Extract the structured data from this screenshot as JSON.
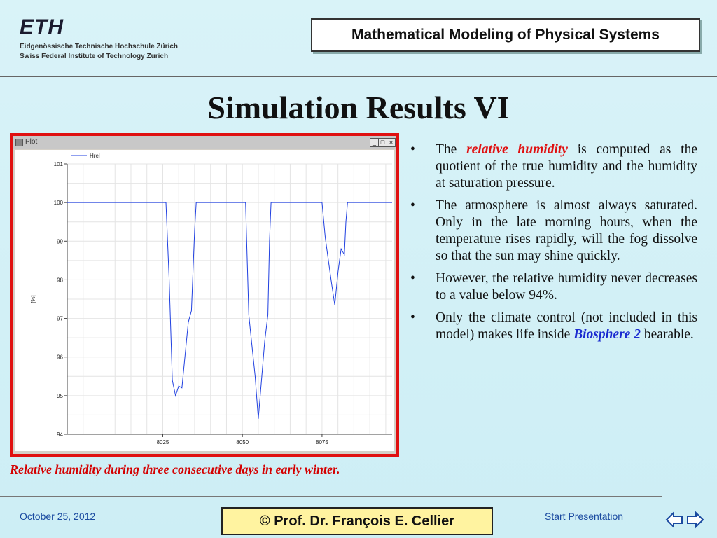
{
  "header": {
    "logo_text": "ETH",
    "logo_line1": "Eidgenössische Technische Hochschule Zürich",
    "logo_line2": "Swiss Federal Institute of Technology Zurich",
    "course_title": "Mathematical Modeling of Physical Systems"
  },
  "slide": {
    "title": "Simulation Results VI"
  },
  "plot_window": {
    "title": "Plot",
    "minimize": "_",
    "maximize": "□",
    "close": "×"
  },
  "chart_data": {
    "type": "line",
    "ylabel": "[%]",
    "series": [
      {
        "name": "Hrel",
        "color": "#2040e0",
        "points": [
          [
            7995,
            100
          ],
          [
            8010,
            100
          ],
          [
            8020,
            100
          ],
          [
            8026,
            100
          ],
          [
            8027,
            98
          ],
          [
            8028,
            95.4
          ],
          [
            8029,
            95
          ],
          [
            8030,
            95.25
          ],
          [
            8031,
            95.2
          ],
          [
            8033,
            96.9
          ],
          [
            8034,
            97.2
          ],
          [
            8035,
            99.3
          ],
          [
            8035.5,
            100
          ],
          [
            8045,
            100
          ],
          [
            8051,
            100
          ],
          [
            8052,
            97.1
          ],
          [
            8053,
            96.3
          ],
          [
            8054,
            95.5
          ],
          [
            8055,
            94.4
          ],
          [
            8057,
            96.4
          ],
          [
            8058,
            97.1
          ],
          [
            8058.5,
            99
          ],
          [
            8059,
            100
          ],
          [
            8070,
            100
          ],
          [
            8075,
            100
          ],
          [
            8076,
            99.1
          ],
          [
            8077,
            98.5
          ],
          [
            8078,
            97.9
          ],
          [
            8079,
            97.35
          ],
          [
            8080,
            98.2
          ],
          [
            8081,
            98.8
          ],
          [
            8082,
            98.65
          ],
          [
            8082.5,
            99.5
          ],
          [
            8083,
            100
          ],
          [
            8095,
            100
          ],
          [
            8097,
            100
          ]
        ]
      }
    ],
    "xlim": [
      7995,
      8097
    ],
    "ylim": [
      94,
      101
    ],
    "xticks": [
      8025,
      8050,
      8075
    ],
    "yticks": [
      94,
      95,
      96,
      97,
      98,
      99,
      100,
      101
    ],
    "grid": true,
    "legend": "top-left"
  },
  "caption": "Relative humidity during three consecutive days in early winter.",
  "bullets": [
    {
      "pre": "The ",
      "em": "relative humidity",
      "post": " is computed as the quotient of the true humidity and the humidity at saturation pressure."
    },
    {
      "pre": "The atmosphere is almost always saturated.  Only in the late morning hours, when the temperature rises rapidly, will the fog dissolve so that the sun may shine quickly.",
      "em": "",
      "post": ""
    },
    {
      "pre": "However, the relative humidity never decreases to a value below 94%.",
      "em": "",
      "post": ""
    },
    {
      "pre": "Only the climate control (not included in this model) makes life inside ",
      "em": "Biosphere 2",
      "post": " bearable."
    }
  ],
  "bullet_symbol": "•",
  "footer": {
    "date": "October 25, 2012",
    "author": "©  Prof. Dr. François E. Cellier",
    "start": "Start Presentation"
  },
  "colors": {
    "accent_red": "#e01010",
    "link_blue": "#1a4aa0",
    "author_bg": "#fff3a0"
  }
}
